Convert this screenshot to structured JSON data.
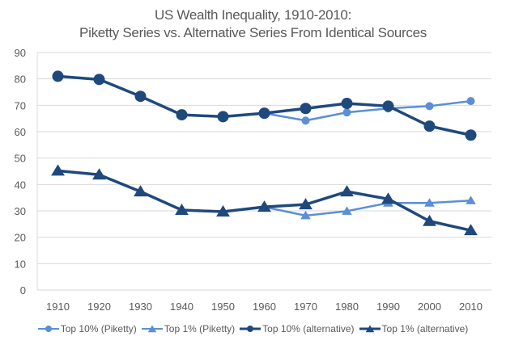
{
  "chart_data": {
    "type": "line",
    "title": "US Wealth Inequality, 1910-2010:",
    "subtitle": "Piketty Series vs. Alternative Series From Identical Sources",
    "xlabel": "",
    "ylabel": "",
    "x": [
      "1910",
      "1920",
      "1930",
      "1940",
      "1950",
      "1960",
      "1970",
      "1980",
      "1990",
      "2000",
      "2010"
    ],
    "yticks": [
      0,
      10,
      20,
      30,
      40,
      50,
      60,
      70,
      80,
      90
    ],
    "ylim": [
      0,
      90
    ],
    "grid": true,
    "legend_position": "bottom",
    "series": [
      {
        "name": "Top 10% (Piketty)",
        "marker": "circle",
        "color": "#5b8fd6",
        "width": "thin",
        "values": [
          null,
          null,
          null,
          null,
          null,
          67.0,
          64.2,
          67.3,
          68.8,
          69.7,
          71.6
        ]
      },
      {
        "name": "Top 1% (Piketty)",
        "marker": "triangle",
        "color": "#5b8fd6",
        "width": "thin",
        "values": [
          null,
          null,
          null,
          null,
          null,
          31.5,
          28.2,
          29.9,
          33.0,
          33.0,
          33.9
        ]
      },
      {
        "name": "Top 10% (alternative)",
        "marker": "circle",
        "color": "#1f497d",
        "width": "thick",
        "values": [
          81.0,
          79.8,
          73.4,
          66.4,
          65.7,
          67.0,
          68.8,
          70.7,
          69.7,
          62.1,
          58.7
        ]
      },
      {
        "name": "Top 1% (alternative)",
        "marker": "triangle",
        "color": "#1f497d",
        "width": "thick",
        "values": [
          45.2,
          43.7,
          37.3,
          30.3,
          29.7,
          31.5,
          32.4,
          37.3,
          34.5,
          26.1,
          22.6
        ]
      }
    ]
  }
}
